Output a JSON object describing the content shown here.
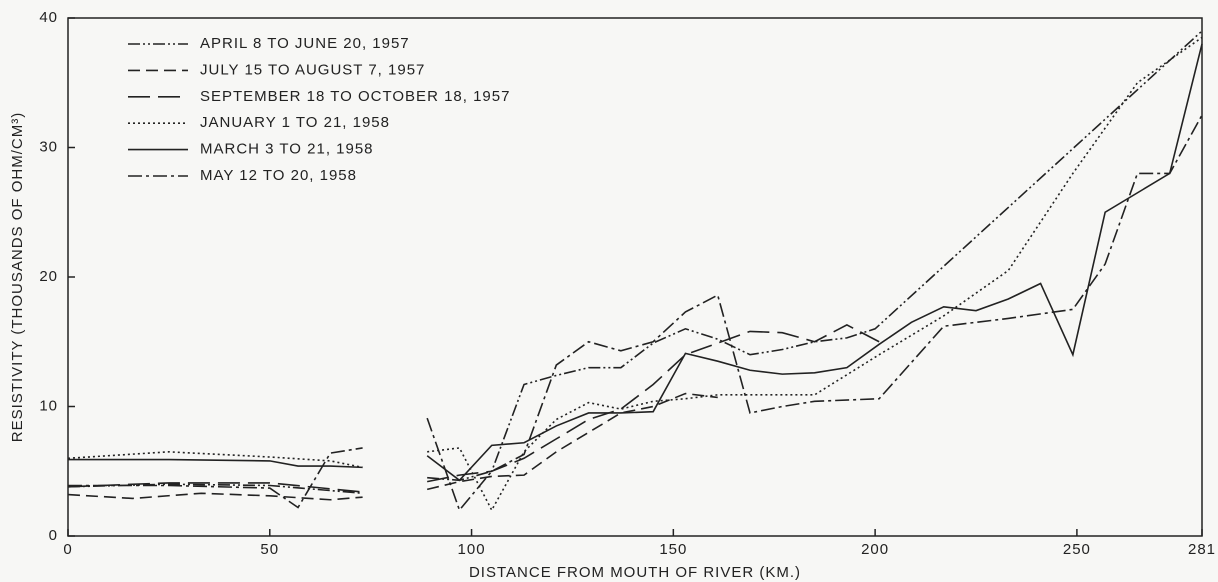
{
  "chart_data": {
    "type": "line",
    "xlabel": "DISTANCE FROM MOUTH OF RIVER (KM.)",
    "ylabel": "RESISTIVITY (THOUSANDS OF OHM/CM³)",
    "xlim": [
      0,
      281
    ],
    "ylim": [
      0,
      40
    ],
    "xticks": [
      0,
      50,
      100,
      150,
      200,
      250,
      281
    ],
    "yticks": [
      0,
      10,
      20,
      30,
      40
    ],
    "legend": "upper left",
    "series": [
      {
        "name": "APRIL 8 TO JUNE 20, 1957",
        "color": "#222",
        "linestyle": "dash-dot-dot",
        "x": [
          0,
          25,
          50,
          73,
          81,
          89,
          97,
          105,
          113,
          121,
          129,
          137,
          145,
          153,
          161,
          169,
          177,
          185,
          193,
          200,
          281
        ],
        "values": [
          3.8,
          4.0,
          3.9,
          3.3,
          null,
          4.5,
          4.3,
          5.0,
          11.7,
          12.4,
          13,
          13,
          14.9,
          16,
          15.2,
          14,
          14.4,
          15,
          15.3,
          16,
          39
        ]
      },
      {
        "name": "JULY 15 TO AUGUST 7, 1957",
        "color": "#222",
        "linestyle": "dashed",
        "x": [
          0,
          16,
          33,
          50,
          65,
          73,
          81,
          89,
          97,
          105,
          113,
          121,
          129,
          137,
          145,
          153,
          161
        ],
        "values": [
          3.2,
          2.9,
          3.3,
          3.1,
          2.8,
          3.0,
          null,
          3.6,
          4.2,
          4.6,
          4.7,
          6.5,
          8,
          9.5,
          10,
          11,
          10.7
        ]
      },
      {
        "name": "SEPTEMBER 18 TO OCTOBER 18, 1957",
        "color": "#222",
        "linestyle": "long-dash",
        "x": [
          0,
          25,
          50,
          73,
          81,
          89,
          97,
          105,
          113,
          121,
          129,
          137,
          145,
          153,
          161,
          169,
          177,
          185,
          193,
          201
        ],
        "values": [
          3.8,
          4.1,
          4.1,
          3.4,
          null,
          4.2,
          4.7,
          5,
          6,
          7.5,
          9,
          9.8,
          11.7,
          14,
          14.9,
          15.8,
          15.7,
          15,
          16.3,
          15
        ]
      },
      {
        "name": "JANUARY 1 TO 21, 1958",
        "color": "#222",
        "linestyle": "dotted",
        "x": [
          0,
          25,
          50,
          65,
          73,
          81,
          89,
          97,
          105,
          113,
          121,
          129,
          137,
          145,
          153,
          161,
          169,
          185,
          201,
          217,
          233,
          249,
          265,
          281
        ],
        "values": [
          6.0,
          6.5,
          6.1,
          5.8,
          5.3,
          null,
          6.5,
          6.8,
          2.0,
          6.5,
          9,
          10.3,
          9.8,
          10.4,
          10.6,
          10.9,
          10.9,
          10.9,
          14,
          17,
          20.5,
          28,
          35,
          38.5
        ]
      },
      {
        "name": "MARCH 3 TO 21, 1958",
        "color": "#222",
        "linestyle": "solid",
        "x": [
          0,
          25,
          50,
          57,
          65,
          73,
          81,
          89,
          97,
          105,
          113,
          121,
          129,
          137,
          145,
          153,
          161,
          169,
          177,
          185,
          193,
          201,
          209,
          217,
          225,
          233,
          241,
          249,
          257,
          273,
          281
        ],
        "values": [
          5.9,
          5.9,
          5.8,
          5.4,
          5.4,
          5.3,
          null,
          6.2,
          4.3,
          7,
          7.2,
          8.5,
          9.5,
          9.5,
          9.6,
          14.1,
          13.5,
          12.8,
          12.5,
          12.6,
          13,
          14.8,
          16.5,
          17.7,
          17.4,
          18.3,
          19.5,
          14,
          25,
          28,
          38
        ]
      },
      {
        "name": "MAY 12 TO 20, 1958",
        "color": "#222",
        "linestyle": "dash-dot",
        "x": [
          0,
          25,
          50,
          57,
          65,
          73,
          81,
          89,
          97,
          105,
          113,
          121,
          129,
          137,
          145,
          153,
          161,
          169,
          177,
          185,
          201,
          217,
          233,
          249,
          257,
          265,
          273,
          281
        ],
        "values": [
          3.9,
          3.9,
          3.7,
          2.2,
          6.4,
          6.8,
          null,
          9.1,
          2.0,
          5,
          6.3,
          13.2,
          15,
          14.3,
          15,
          17.3,
          18.6,
          9.5,
          10,
          10.4,
          10.6,
          16.2,
          16.8,
          17.5,
          21,
          28,
          28,
          32.5
        ]
      }
    ]
  }
}
